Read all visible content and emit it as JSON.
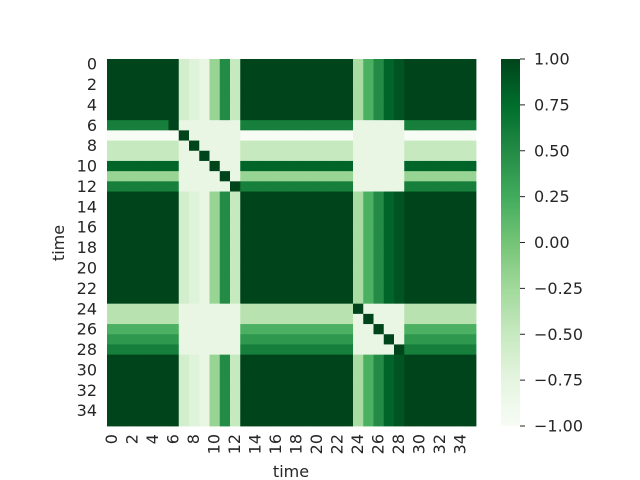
{
  "chart_data": {
    "type": "heatmap",
    "title": "",
    "xlabel": "time",
    "ylabel": "time",
    "n": 36,
    "x_tick_labels": [
      "0",
      "2",
      "4",
      "6",
      "8",
      "10",
      "12",
      "14",
      "16",
      "18",
      "20",
      "22",
      "24",
      "26",
      "28",
      "30",
      "32",
      "34"
    ],
    "y_tick_labels": [
      "0",
      "2",
      "4",
      "6",
      "8",
      "10",
      "12",
      "14",
      "16",
      "18",
      "20",
      "22",
      "24",
      "26",
      "28",
      "30",
      "32",
      "34"
    ],
    "colorbar": {
      "vmin": -1.0,
      "vmax": 1.0,
      "tick_values": [
        1.0,
        0.75,
        0.5,
        0.25,
        0.0,
        -0.25,
        -0.5,
        -0.75,
        -1.0
      ],
      "tick_labels": [
        "1.00",
        "0.75",
        "0.50",
        "0.25",
        "0.00",
        "−0.25",
        "−0.50",
        "−0.75",
        "−1.00"
      ]
    },
    "colormap": "Greens",
    "colormap_stops": [
      "#f7fcf5",
      "#e5f5e0",
      "#c7e9c0",
      "#a1d99b",
      "#74c476",
      "#41ab5d",
      "#238b45",
      "#006d2c",
      "#00441b"
    ],
    "row_profile": [
      1.0,
      1.0,
      1.0,
      1.0,
      1.0,
      1.0,
      0.6,
      -1.0,
      -0.5,
      -0.5,
      0.8,
      -0.2,
      0.6,
      1.0,
      1.0,
      1.0,
      1.0,
      1.0,
      1.0,
      1.0,
      1.0,
      1.0,
      1.0,
      1.0,
      -0.4,
      -0.4,
      0.2,
      0.4,
      0.6,
      1.0,
      1.0,
      1.0,
      1.0,
      1.0,
      1.0,
      1.0
    ],
    "column_profile": [
      1.0,
      1.0,
      1.0,
      1.0,
      1.0,
      1.0,
      1.0,
      -0.6,
      -0.7,
      -0.8,
      -0.2,
      0.5,
      -0.5,
      1.0,
      1.0,
      1.0,
      1.0,
      1.0,
      1.0,
      1.0,
      1.0,
      1.0,
      1.0,
      1.0,
      -0.3,
      0.2,
      0.5,
      0.8,
      0.9,
      1.0,
      1.0,
      1.0,
      1.0,
      1.0,
      1.0,
      1.0
    ]
  }
}
